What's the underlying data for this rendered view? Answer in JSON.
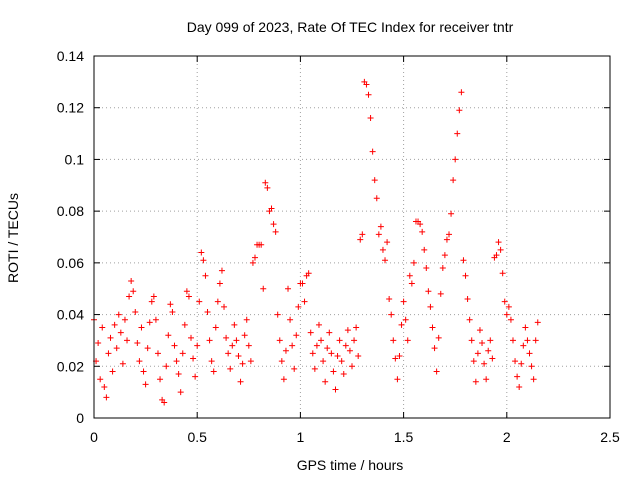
{
  "chart_data": {
    "type": "scatter",
    "title": "Day 099 of 2023, Rate Of TEC Index for receiver tntr",
    "xlabel": "GPS time / hours",
    "ylabel": "ROTI / TECUs",
    "xlim": [
      0,
      2.5
    ],
    "ylim": [
      0,
      0.14
    ],
    "xticks": [
      "0",
      "0.5",
      "1",
      "1.5",
      "2",
      "2.5"
    ],
    "yticks": [
      "0",
      "0.02",
      "0.04",
      "0.06",
      "0.08",
      "0.1",
      "0.12",
      "0.14"
    ],
    "grid": true,
    "marker": "plus",
    "color": "#ff0000",
    "series": [
      {
        "points": [
          [
            0.0,
            0.038
          ],
          [
            0.01,
            0.022
          ],
          [
            0.02,
            0.029
          ],
          [
            0.03,
            0.015
          ],
          [
            0.04,
            0.035
          ],
          [
            0.05,
            0.012
          ],
          [
            0.06,
            0.008
          ],
          [
            0.07,
            0.025
          ],
          [
            0.08,
            0.031
          ],
          [
            0.09,
            0.018
          ],
          [
            0.1,
            0.036
          ],
          [
            0.11,
            0.027
          ],
          [
            0.12,
            0.04
          ],
          [
            0.13,
            0.033
          ],
          [
            0.14,
            0.021
          ],
          [
            0.15,
            0.038
          ],
          [
            0.16,
            0.03
          ],
          [
            0.17,
            0.047
          ],
          [
            0.18,
            0.053
          ],
          [
            0.19,
            0.049
          ],
          [
            0.2,
            0.041
          ],
          [
            0.21,
            0.029
          ],
          [
            0.22,
            0.022
          ],
          [
            0.23,
            0.035
          ],
          [
            0.24,
            0.018
          ],
          [
            0.25,
            0.013
          ],
          [
            0.26,
            0.027
          ],
          [
            0.27,
            0.037
          ],
          [
            0.28,
            0.045
          ],
          [
            0.29,
            0.047
          ],
          [
            0.3,
            0.038
          ],
          [
            0.31,
            0.025
          ],
          [
            0.32,
            0.015
          ],
          [
            0.33,
            0.007
          ],
          [
            0.34,
            0.006
          ],
          [
            0.35,
            0.02
          ],
          [
            0.36,
            0.032
          ],
          [
            0.37,
            0.044
          ],
          [
            0.38,
            0.041
          ],
          [
            0.39,
            0.028
          ],
          [
            0.4,
            0.022
          ],
          [
            0.41,
            0.017
          ],
          [
            0.42,
            0.01
          ],
          [
            0.43,
            0.025
          ],
          [
            0.44,
            0.036
          ],
          [
            0.45,
            0.049
          ],
          [
            0.46,
            0.047
          ],
          [
            0.47,
            0.031
          ],
          [
            0.48,
            0.023
          ],
          [
            0.49,
            0.016
          ],
          [
            0.5,
            0.028
          ],
          [
            0.51,
            0.045
          ],
          [
            0.52,
            0.064
          ],
          [
            0.53,
            0.061
          ],
          [
            0.54,
            0.055
          ],
          [
            0.55,
            0.041
          ],
          [
            0.56,
            0.03
          ],
          [
            0.57,
            0.022
          ],
          [
            0.58,
            0.018
          ],
          [
            0.59,
            0.035
          ],
          [
            0.6,
            0.045
          ],
          [
            0.61,
            0.052
          ],
          [
            0.62,
            0.057
          ],
          [
            0.63,
            0.043
          ],
          [
            0.64,
            0.031
          ],
          [
            0.65,
            0.025
          ],
          [
            0.66,
            0.019
          ],
          [
            0.67,
            0.028
          ],
          [
            0.68,
            0.036
          ],
          [
            0.69,
            0.03
          ],
          [
            0.7,
            0.024
          ],
          [
            0.71,
            0.014
          ],
          [
            0.72,
            0.021
          ],
          [
            0.73,
            0.032
          ],
          [
            0.74,
            0.038
          ],
          [
            0.75,
            0.028
          ],
          [
            0.76,
            0.022
          ],
          [
            0.77,
            0.06
          ],
          [
            0.78,
            0.062
          ],
          [
            0.79,
            0.067
          ],
          [
            0.8,
            0.067
          ],
          [
            0.81,
            0.067
          ],
          [
            0.82,
            0.05
          ],
          [
            0.83,
            0.091
          ],
          [
            0.84,
            0.089
          ],
          [
            0.85,
            0.08
          ],
          [
            0.86,
            0.081
          ],
          [
            0.87,
            0.075
          ],
          [
            0.88,
            0.072
          ],
          [
            0.89,
            0.04
          ],
          [
            0.9,
            0.03
          ],
          [
            0.91,
            0.022
          ],
          [
            0.92,
            0.015
          ],
          [
            0.93,
            0.026
          ],
          [
            0.94,
            0.05
          ],
          [
            0.95,
            0.038
          ],
          [
            0.96,
            0.028
          ],
          [
            0.97,
            0.019
          ],
          [
            0.98,
            0.032
          ],
          [
            0.99,
            0.043
          ],
          [
            1.0,
            0.052
          ],
          [
            1.01,
            0.052
          ],
          [
            1.02,
            0.045
          ],
          [
            1.03,
            0.055
          ],
          [
            1.04,
            0.056
          ],
          [
            1.05,
            0.033
          ],
          [
            1.06,
            0.025
          ],
          [
            1.07,
            0.019
          ],
          [
            1.08,
            0.028
          ],
          [
            1.09,
            0.036
          ],
          [
            1.1,
            0.03
          ],
          [
            1.11,
            0.022
          ],
          [
            1.12,
            0.014
          ],
          [
            1.13,
            0.027
          ],
          [
            1.14,
            0.033
          ],
          [
            1.15,
            0.025
          ],
          [
            1.16,
            0.018
          ],
          [
            1.17,
            0.011
          ],
          [
            1.18,
            0.024
          ],
          [
            1.19,
            0.03
          ],
          [
            1.2,
            0.022
          ],
          [
            1.21,
            0.017
          ],
          [
            1.22,
            0.028
          ],
          [
            1.23,
            0.034
          ],
          [
            1.24,
            0.026
          ],
          [
            1.25,
            0.02
          ],
          [
            1.26,
            0.03
          ],
          [
            1.27,
            0.035
          ],
          [
            1.28,
            0.024
          ],
          [
            1.29,
            0.069
          ],
          [
            1.3,
            0.071
          ],
          [
            1.31,
            0.13
          ],
          [
            1.32,
            0.129
          ],
          [
            1.33,
            0.125
          ],
          [
            1.34,
            0.116
          ],
          [
            1.35,
            0.103
          ],
          [
            1.36,
            0.092
          ],
          [
            1.37,
            0.085
          ],
          [
            1.38,
            0.071
          ],
          [
            1.39,
            0.074
          ],
          [
            1.4,
            0.065
          ],
          [
            1.41,
            0.061
          ],
          [
            1.42,
            0.068
          ],
          [
            1.43,
            0.046
          ],
          [
            1.44,
            0.04
          ],
          [
            1.45,
            0.03
          ],
          [
            1.46,
            0.023
          ],
          [
            1.47,
            0.015
          ],
          [
            1.48,
            0.024
          ],
          [
            1.49,
            0.036
          ],
          [
            1.5,
            0.045
          ],
          [
            1.51,
            0.038
          ],
          [
            1.52,
            0.03
          ],
          [
            1.53,
            0.055
          ],
          [
            1.54,
            0.052
          ],
          [
            1.55,
            0.06
          ],
          [
            1.56,
            0.076
          ],
          [
            1.57,
            0.076
          ],
          [
            1.58,
            0.075
          ],
          [
            1.59,
            0.072
          ],
          [
            1.6,
            0.065
          ],
          [
            1.61,
            0.058
          ],
          [
            1.62,
            0.049
          ],
          [
            1.63,
            0.043
          ],
          [
            1.64,
            0.035
          ],
          [
            1.65,
            0.027
          ],
          [
            1.66,
            0.018
          ],
          [
            1.67,
            0.031
          ],
          [
            1.68,
            0.048
          ],
          [
            1.69,
            0.058
          ],
          [
            1.7,
            0.063
          ],
          [
            1.71,
            0.069
          ],
          [
            1.72,
            0.071
          ],
          [
            1.73,
            0.079
          ],
          [
            1.74,
            0.092
          ],
          [
            1.75,
            0.1
          ],
          [
            1.76,
            0.11
          ],
          [
            1.77,
            0.119
          ],
          [
            1.78,
            0.126
          ],
          [
            1.79,
            0.061
          ],
          [
            1.8,
            0.055
          ],
          [
            1.81,
            0.046
          ],
          [
            1.82,
            0.038
          ],
          [
            1.83,
            0.03
          ],
          [
            1.84,
            0.022
          ],
          [
            1.85,
            0.014
          ],
          [
            1.86,
            0.025
          ],
          [
            1.87,
            0.034
          ],
          [
            1.88,
            0.029
          ],
          [
            1.89,
            0.021
          ],
          [
            1.9,
            0.015
          ],
          [
            1.91,
            0.026
          ],
          [
            1.92,
            0.03
          ],
          [
            1.93,
            0.023
          ],
          [
            1.94,
            0.062
          ],
          [
            1.95,
            0.063
          ],
          [
            1.96,
            0.068
          ],
          [
            1.97,
            0.065
          ],
          [
            1.98,
            0.056
          ],
          [
            1.99,
            0.045
          ],
          [
            2.0,
            0.04
          ],
          [
            2.01,
            0.043
          ],
          [
            2.02,
            0.038
          ],
          [
            2.03,
            0.03
          ],
          [
            2.04,
            0.022
          ],
          [
            2.05,
            0.016
          ],
          [
            2.06,
            0.012
          ],
          [
            2.07,
            0.021
          ],
          [
            2.08,
            0.028
          ],
          [
            2.09,
            0.035
          ],
          [
            2.1,
            0.03
          ],
          [
            2.11,
            0.025
          ],
          [
            2.12,
            0.02
          ],
          [
            2.13,
            0.015
          ],
          [
            2.14,
            0.03
          ],
          [
            2.15,
            0.037
          ]
        ]
      }
    ]
  }
}
